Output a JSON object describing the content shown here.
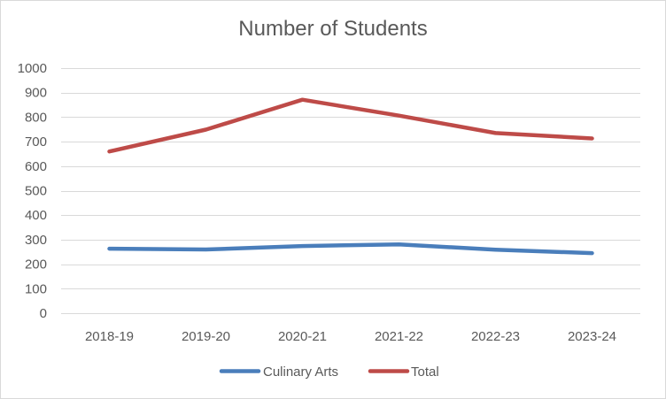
{
  "chart_data": {
    "type": "line",
    "title": "Number of Students",
    "xlabel": "",
    "ylabel": "",
    "categories": [
      "2018-19",
      "2019-20",
      "2020-21",
      "2021-22",
      "2022-23",
      "2023-24"
    ],
    "ylim": [
      0,
      1000
    ],
    "yticks": [
      0,
      100,
      200,
      300,
      400,
      500,
      600,
      700,
      800,
      900,
      1000
    ],
    "grid": true,
    "legend_position": "bottom",
    "series": [
      {
        "name": "Culinary Arts",
        "color": "#4a7ebb",
        "values": [
          263,
          260,
          274,
          281,
          259,
          245
        ]
      },
      {
        "name": "Total",
        "color": "#be4b48",
        "values": [
          660,
          749,
          871,
          806,
          735,
          713
        ]
      }
    ]
  }
}
